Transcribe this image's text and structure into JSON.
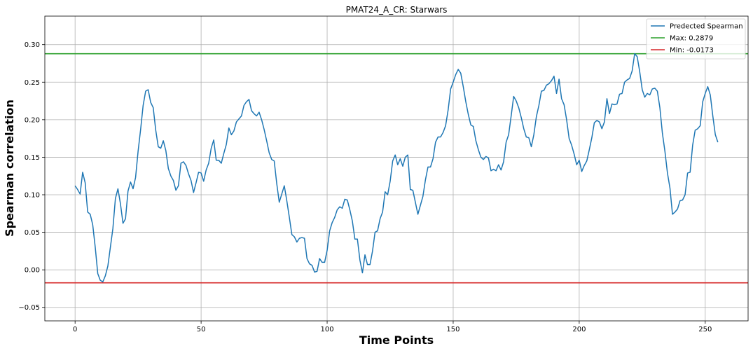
{
  "chart_data": {
    "type": "line",
    "title": "PMAT24_A_CR: Starwars",
    "xlabel": "Time Points",
    "ylabel": "Spearman correlation",
    "xlim": [
      -12,
      267
    ],
    "ylim": [
      -0.068,
      0.338
    ],
    "xticks": [
      0,
      50,
      100,
      150,
      200,
      250
    ],
    "yticks": [
      -0.05,
      0.0,
      0.05,
      0.1,
      0.15,
      0.2,
      0.25,
      0.3
    ],
    "ytick_labels": [
      "−0.05",
      "0.00",
      "0.05",
      "0.10",
      "0.15",
      "0.20",
      "0.25",
      "0.30"
    ],
    "grid": true,
    "legend_position": "top-right",
    "series": [
      {
        "name": "Predected Spearman",
        "color": "#1f77b4",
        "x_start": 0,
        "y": [
          0.112,
          0.107,
          0.101,
          0.13,
          0.116,
          0.077,
          0.074,
          0.06,
          0.03,
          -0.005,
          -0.014,
          -0.016,
          -0.008,
          0.005,
          0.03,
          0.055,
          0.095,
          0.108,
          0.088,
          0.062,
          0.068,
          0.105,
          0.117,
          0.108,
          0.123,
          0.158,
          0.187,
          0.219,
          0.238,
          0.24,
          0.223,
          0.216,
          0.186,
          0.164,
          0.162,
          0.172,
          0.159,
          0.135,
          0.125,
          0.119,
          0.106,
          0.112,
          0.142,
          0.144,
          0.139,
          0.128,
          0.119,
          0.103,
          0.116,
          0.13,
          0.129,
          0.118,
          0.133,
          0.142,
          0.162,
          0.173,
          0.146,
          0.146,
          0.142,
          0.155,
          0.167,
          0.189,
          0.18,
          0.185,
          0.197,
          0.201,
          0.205,
          0.219,
          0.224,
          0.227,
          0.212,
          0.208,
          0.205,
          0.21,
          0.2,
          0.187,
          0.172,
          0.156,
          0.147,
          0.145,
          0.115,
          0.09,
          0.101,
          0.112,
          0.092,
          0.07,
          0.047,
          0.044,
          0.037,
          0.042,
          0.043,
          0.042,
          0.015,
          0.008,
          0.006,
          -0.003,
          -0.002,
          0.015,
          0.01,
          0.01,
          0.026,
          0.052,
          0.063,
          0.07,
          0.08,
          0.084,
          0.082,
          0.094,
          0.093,
          0.08,
          0.065,
          0.041,
          0.041,
          0.013,
          -0.004,
          0.02,
          0.007,
          0.007,
          0.025,
          0.05,
          0.052,
          0.068,
          0.077,
          0.104,
          0.1,
          0.118,
          0.145,
          0.153,
          0.14,
          0.148,
          0.138,
          0.15,
          0.153,
          0.107,
          0.106,
          0.09,
          0.074,
          0.086,
          0.098,
          0.12,
          0.137,
          0.137,
          0.148,
          0.17,
          0.177,
          0.177,
          0.183,
          0.192,
          0.213,
          0.241,
          0.25,
          0.26,
          0.267,
          0.262,
          0.244,
          0.224,
          0.207,
          0.193,
          0.191,
          0.172,
          0.16,
          0.15,
          0.147,
          0.151,
          0.149,
          0.132,
          0.134,
          0.132,
          0.14,
          0.133,
          0.144,
          0.17,
          0.18,
          0.205,
          0.231,
          0.225,
          0.216,
          0.203,
          0.188,
          0.177,
          0.176,
          0.164,
          0.18,
          0.204,
          0.219,
          0.238,
          0.239,
          0.246,
          0.248,
          0.252,
          0.258,
          0.235,
          0.254,
          0.228,
          0.22,
          0.2,
          0.175,
          0.166,
          0.154,
          0.14,
          0.146,
          0.131,
          0.139,
          0.145,
          0.16,
          0.176,
          0.196,
          0.199,
          0.197,
          0.188,
          0.197,
          0.228,
          0.208,
          0.221,
          0.22,
          0.221,
          0.234,
          0.235,
          0.25,
          0.253,
          0.255,
          0.265,
          0.288,
          0.284,
          0.264,
          0.24,
          0.23,
          0.235,
          0.233,
          0.241,
          0.242,
          0.238,
          0.216,
          0.182,
          0.158,
          0.129,
          0.109,
          0.074,
          0.077,
          0.081,
          0.092,
          0.093,
          0.1,
          0.129,
          0.13,
          0.166,
          0.186,
          0.188,
          0.192,
          0.224,
          0.235,
          0.244,
          0.233,
          0.205,
          0.18,
          0.17
        ]
      }
    ],
    "hlines": [
      {
        "name": "Max: 0.2879",
        "value": 0.2879,
        "color": "#2ca02c"
      },
      {
        "name": "Min: -0.0173",
        "value": -0.0173,
        "color": "#d62728"
      }
    ]
  }
}
